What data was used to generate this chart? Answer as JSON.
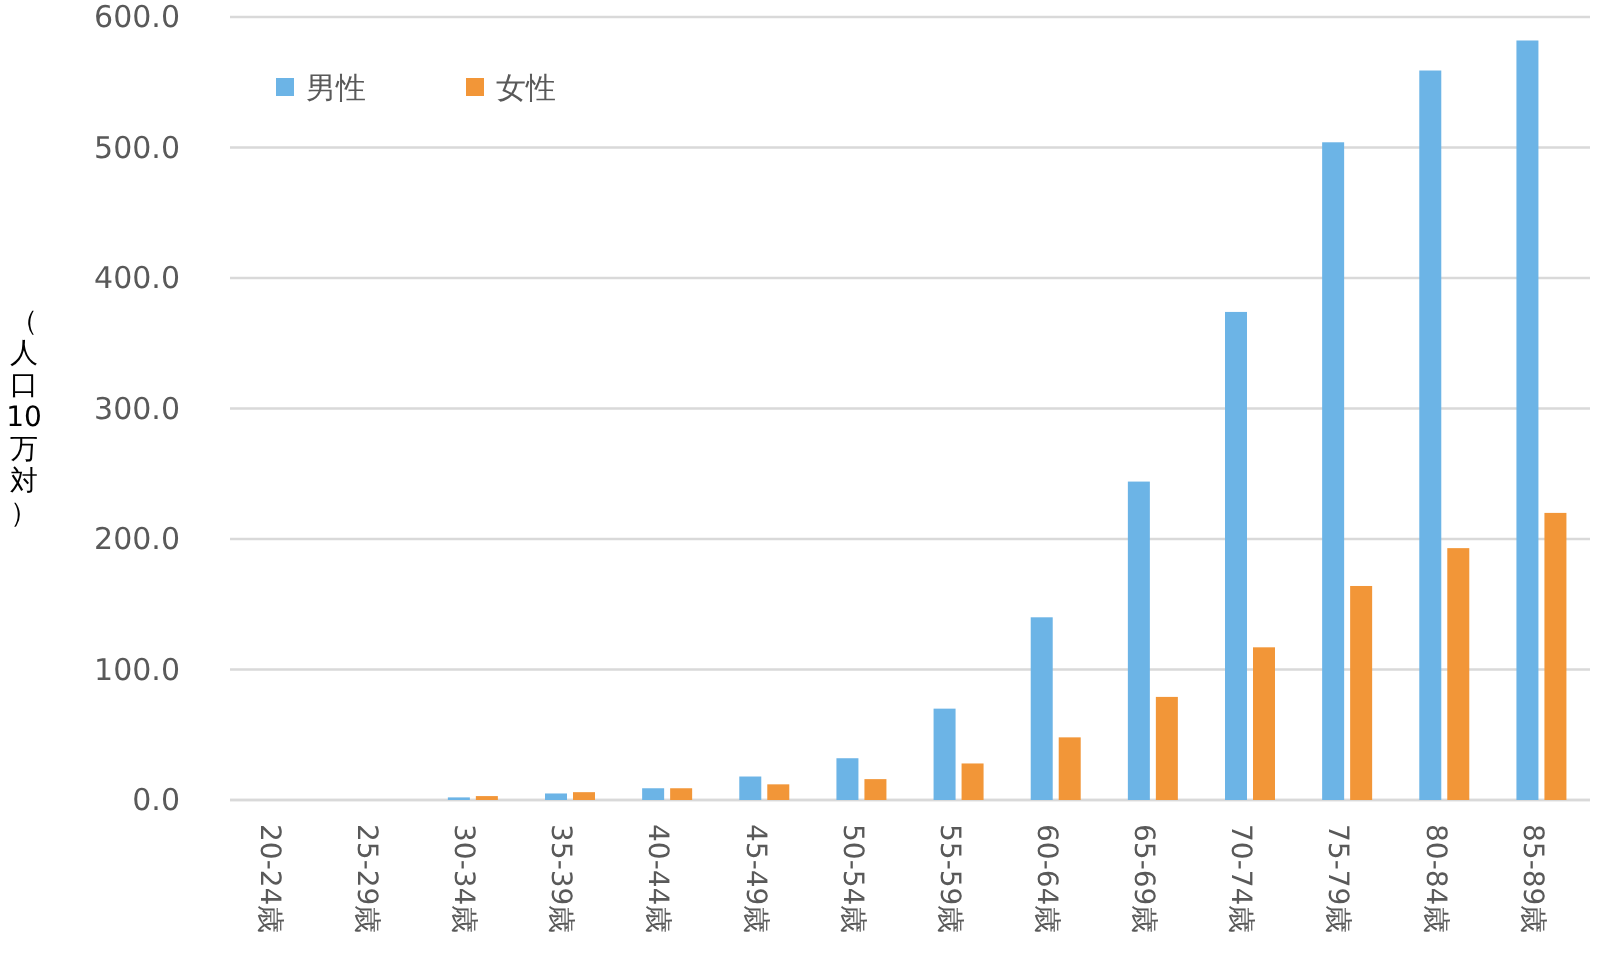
{
  "chart_data": {
    "type": "bar",
    "ylabel": "（人口10万対）",
    "categories": [
      "20-24歳",
      "25-29歳",
      "30-34歳",
      "35-39歳",
      "40-44歳",
      "45-49歳",
      "50-54歳",
      "55-59歳",
      "60-64歳",
      "65-69歳",
      "70-74歳",
      "75-79歳",
      "80-84歳",
      "85-89歳"
    ],
    "series": [
      {
        "name": "男性",
        "color": "#6cb4e6",
        "values": [
          0,
          0,
          2,
          5,
          9,
          18,
          32,
          70,
          140,
          244,
          374,
          504,
          559,
          582
        ]
      },
      {
        "name": "女性",
        "color": "#f29638",
        "values": [
          0,
          0,
          3,
          6,
          9,
          12,
          16,
          28,
          48,
          79,
          117,
          164,
          193,
          220
        ]
      }
    ],
    "ylim": [
      0,
      600
    ],
    "yticks": [
      {
        "value": 0,
        "label": "0.0"
      },
      {
        "value": 100,
        "label": "100.0"
      },
      {
        "value": 200,
        "label": "200.0"
      },
      {
        "value": 300,
        "label": "300.0"
      },
      {
        "value": 400,
        "label": "400.0"
      },
      {
        "value": 500,
        "label": "500.0"
      },
      {
        "value": 600,
        "label": "600.0"
      }
    ],
    "grid": "y",
    "legend": "top left"
  }
}
